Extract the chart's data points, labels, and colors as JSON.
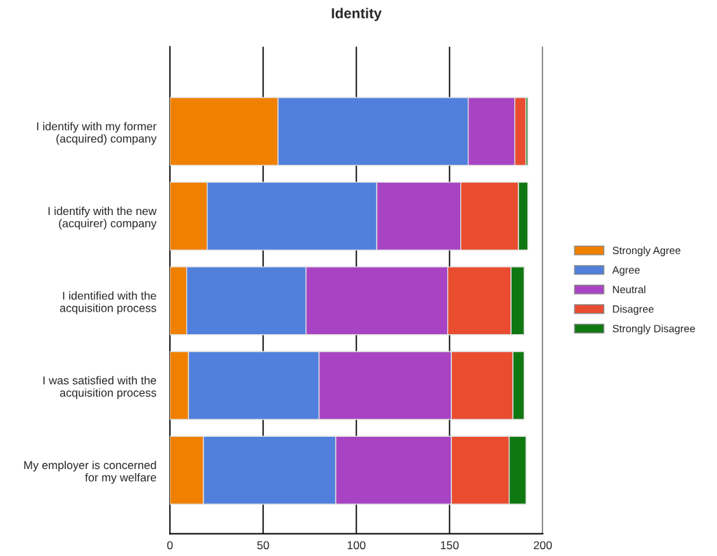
{
  "chart_data": {
    "type": "bar",
    "title": "Identity",
    "orientation": "horizontal",
    "stacked": true,
    "categories": [
      "I identify with my former\n(acquired) company",
      "I identify with the new\n(acquirer) company",
      "I identified with the\nacquisition process",
      "I was satisfied with the\nacquisition process",
      "My employer is concerned\nfor my welfare"
    ],
    "series": [
      {
        "name": "Strongly Agree",
        "color": "#f08000",
        "values": [
          58,
          20,
          9,
          10,
          18
        ]
      },
      {
        "name": "Agree",
        "color": "#5080dc",
        "values": [
          102,
          91,
          64,
          70,
          71
        ]
      },
      {
        "name": "Neutral",
        "color": "#a844c4",
        "values": [
          25,
          45,
          76,
          71,
          62
        ]
      },
      {
        "name": "Disagree",
        "color": "#ea4c30",
        "values": [
          6,
          31,
          34,
          33,
          31
        ]
      },
      {
        "name": "Strongly Disagree",
        "color": "#107810",
        "values": [
          1,
          5,
          7,
          6,
          9
        ]
      }
    ],
    "xlim": [
      0,
      200
    ],
    "xticks": [
      0,
      50,
      100,
      150,
      200
    ],
    "grid": "x",
    "legend": "right"
  }
}
